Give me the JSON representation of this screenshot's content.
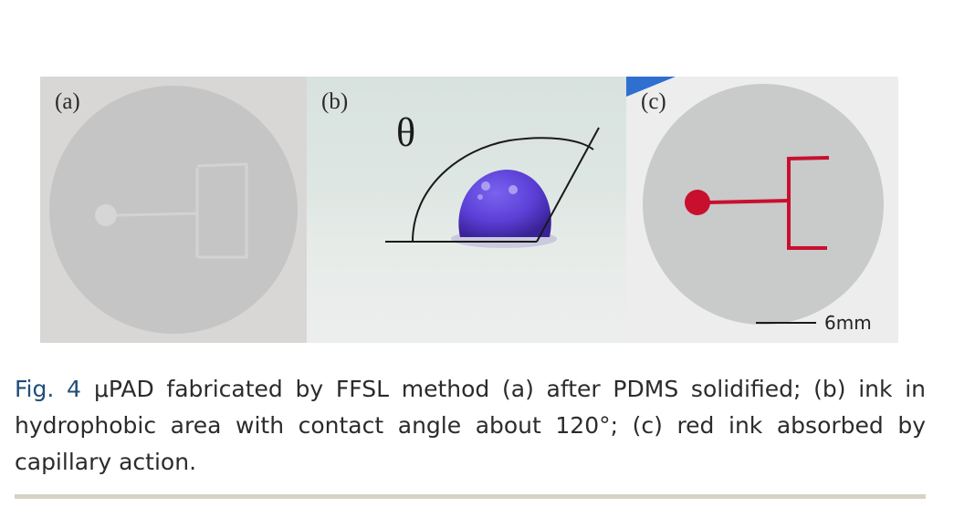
{
  "figure": {
    "panels": [
      {
        "label": "(a)"
      },
      {
        "label": "(b)",
        "angle_symbol": "θ"
      },
      {
        "label": "(c)",
        "scale_bar_label": "6mm"
      }
    ]
  },
  "caption": {
    "fig_label": "Fig. 4",
    "text": "μPAD fabricated by FFSL method (a) after PDMS solidified; (b) ink in hydrophobic area with contact angle about 120°; (c) red ink absorbed by capillary action."
  },
  "colors": {
    "caption_label": "#1f4e79",
    "ink_red": "#c8102e",
    "droplet_purple": "#5b3fd6",
    "rule": "#d6d2c4"
  }
}
